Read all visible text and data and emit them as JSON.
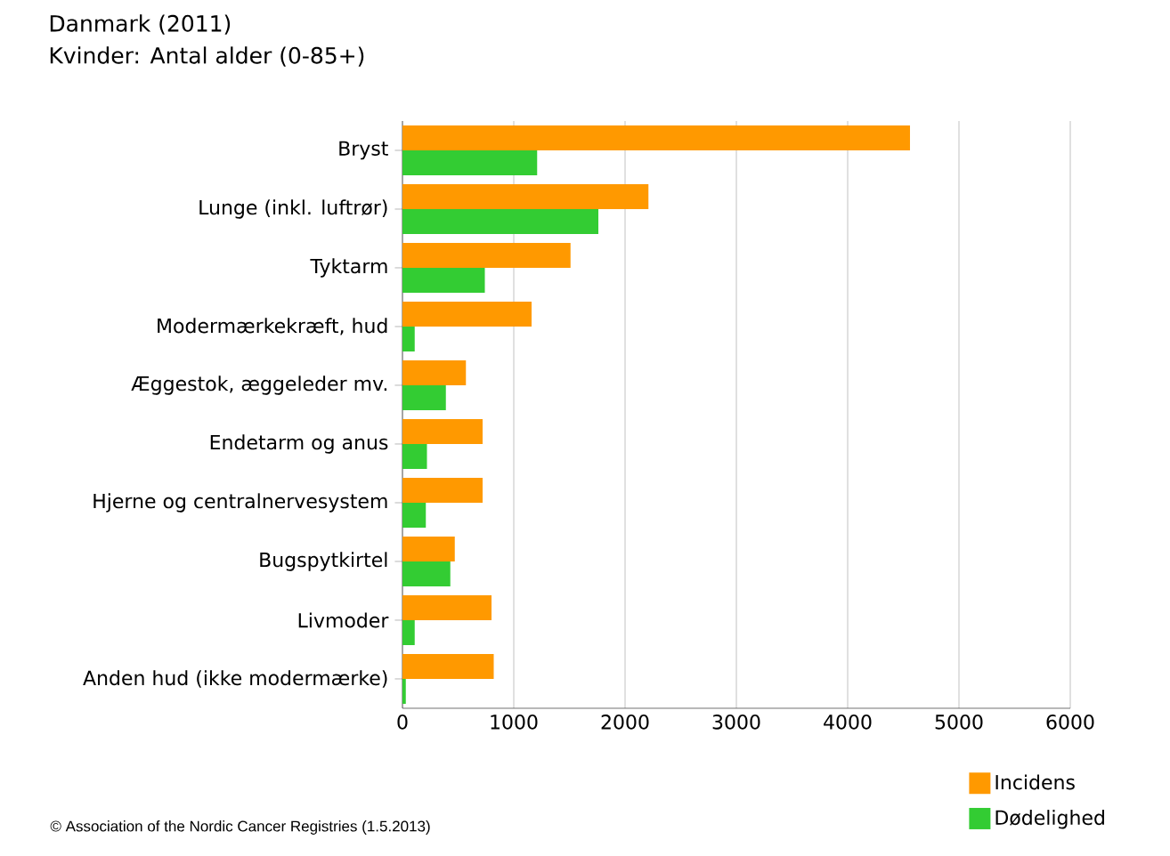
{
  "chart_data": {
    "type": "bar",
    "orientation": "horizontal",
    "title": "Danmark (2011)",
    "subtitle": "Kvinder: Antal alder (0-85+)",
    "categories": [
      "Bryst",
      "Lunge (inkl. luftrør)",
      "Tyktarm",
      "Modermærkekræft, hud",
      "Æggestok, æggeleder mv.",
      "Endetarm og anus",
      "Hjerne og centralnervesystem",
      "Bugspytkirtel",
      "Livmoder",
      "Anden hud (ikke modermærke)"
    ],
    "series": [
      {
        "name": "Incidens",
        "color": "#ff9900",
        "values": [
          4560,
          2210,
          1510,
          1160,
          570,
          720,
          720,
          470,
          800,
          820
        ]
      },
      {
        "name": "Dødelighed",
        "color": "#33cc33",
        "values": [
          1210,
          1760,
          740,
          110,
          390,
          220,
          210,
          430,
          110,
          30
        ]
      }
    ],
    "xlim": [
      0,
      6000
    ],
    "xticks": [
      0,
      1000,
      2000,
      3000,
      4000,
      5000,
      6000
    ],
    "grid": "x",
    "legend": "bottom right",
    "annotations": [
      "© Association of the Nordic Cancer Registries (1.5.2013)"
    ]
  }
}
